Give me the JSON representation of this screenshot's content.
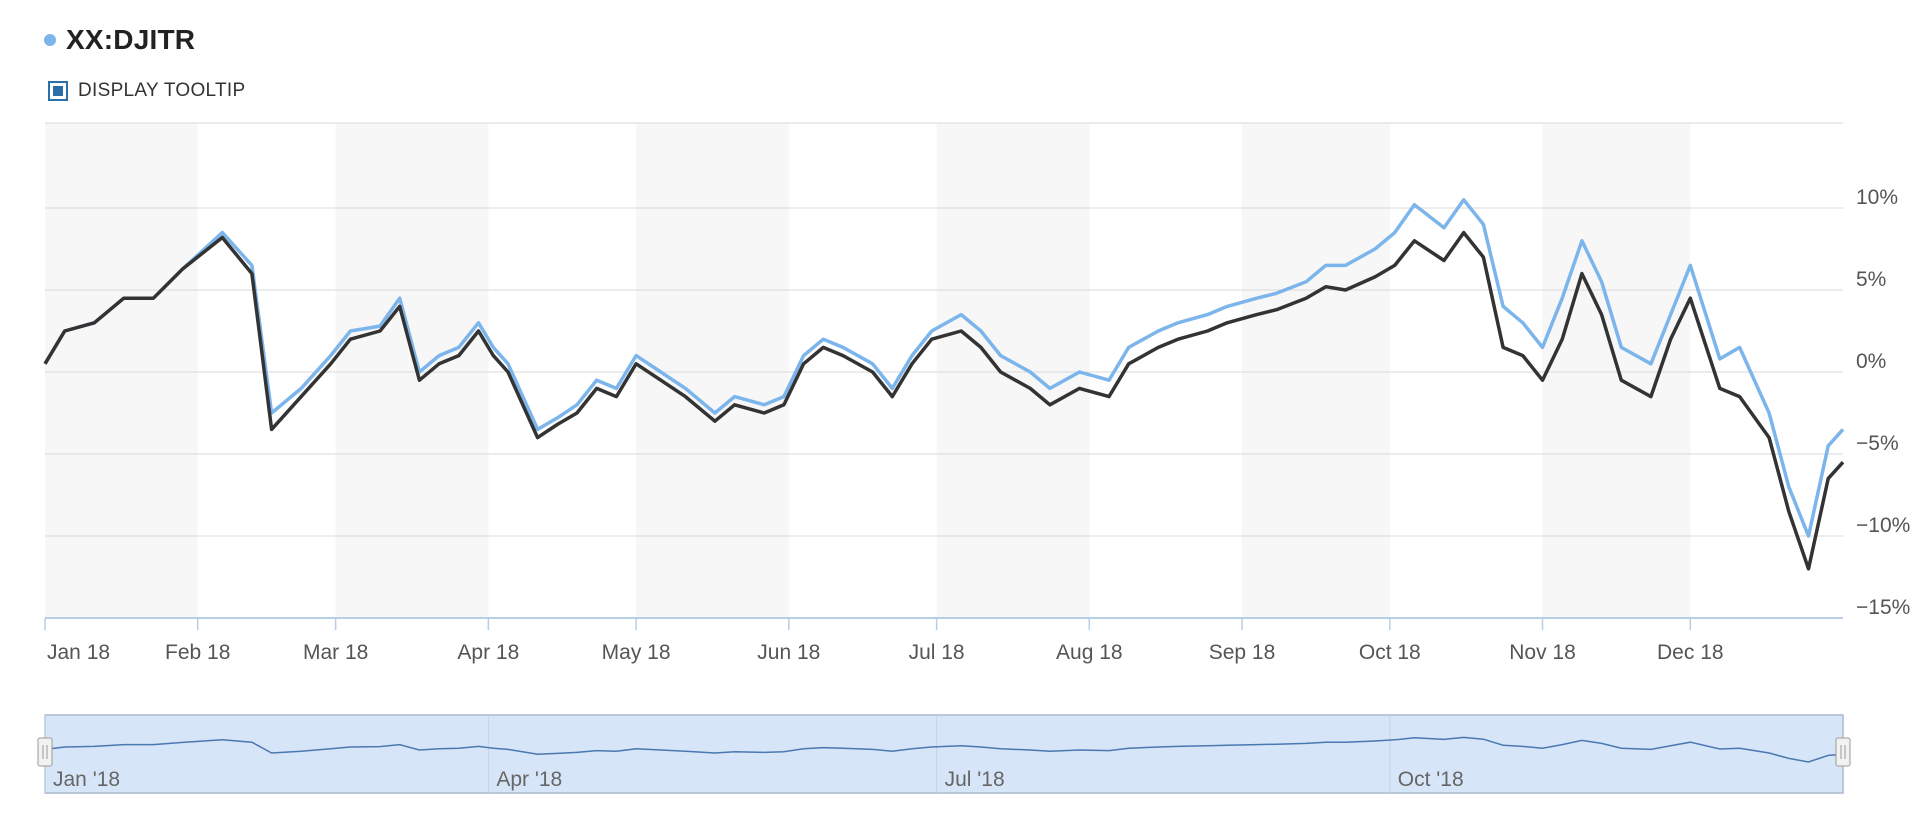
{
  "legend": {
    "label": "XX:DJITR",
    "dot_color": "#7cb5ec"
  },
  "tooltip_toggle": {
    "label": "DISPLAY TOOLTIP",
    "checked": true
  },
  "colors": {
    "series_1": "#7cb5ec",
    "series_2": "#333333",
    "band": "#f7f7f7",
    "navigator_fill": "#d6e6f8"
  },
  "chart_data": {
    "type": "line",
    "x_ticks": [
      "Jan 18",
      "Feb 18",
      "Mar 18",
      "Apr 18",
      "May 18",
      "Jun 18",
      "Jul 18",
      "Aug 18",
      "Sep 18",
      "Oct 18",
      "Nov 18",
      "Dec 18"
    ],
    "y_ticks": [
      "10%",
      "5%",
      "0%",
      "−5%",
      "−10%",
      "−15%"
    ],
    "y_tick_values": [
      10,
      5,
      0,
      -5,
      -10,
      -15
    ],
    "ylim": [
      -15,
      10
    ],
    "grid": true,
    "x_domain": [
      0,
      365
    ],
    "series": [
      {
        "color": "#7cb5ec",
        "x": [
          0,
          4,
          10,
          16,
          22,
          28,
          36,
          42,
          46,
          52,
          58,
          62,
          68,
          72,
          76,
          80,
          84,
          88,
          91,
          94,
          100,
          104,
          108,
          112,
          116,
          120,
          125,
          130,
          136,
          140,
          146,
          150,
          154,
          158,
          162,
          168,
          172,
          176,
          180,
          186,
          190,
          194,
          200,
          204,
          210,
          216,
          220,
          226,
          230,
          236,
          240,
          246,
          250,
          256,
          260,
          264,
          270,
          274,
          278,
          284,
          288,
          292,
          296,
          300,
          304,
          308,
          312,
          316,
          320,
          326,
          330,
          334,
          340,
          344,
          350,
          354,
          358,
          362,
          365
        ],
        "y": [
          0.5,
          2.5,
          3.0,
          4.5,
          4.5,
          6.3,
          8.5,
          6.5,
          -2.5,
          -1.0,
          1.0,
          2.5,
          2.8,
          4.5,
          0.0,
          1.0,
          1.5,
          3.0,
          1.5,
          0.5,
          -3.5,
          -2.8,
          -2.0,
          -0.5,
          -1.0,
          1.0,
          0.0,
          -1.0,
          -2.5,
          -1.5,
          -2.0,
          -1.5,
          1.0,
          2.0,
          1.5,
          0.5,
          -1.0,
          1.0,
          2.5,
          3.5,
          2.5,
          1.0,
          0.0,
          -1.0,
          0.0,
          -0.5,
          1.5,
          2.5,
          3.0,
          3.5,
          4.0,
          4.5,
          4.8,
          5.5,
          6.5,
          6.5,
          7.5,
          8.5,
          10.2,
          8.8,
          10.5,
          9.0,
          4.0,
          3.0,
          1.5,
          4.5,
          8.0,
          5.5,
          1.5,
          0.5,
          3.5,
          6.5,
          0.8,
          1.5,
          -2.5,
          -7.0,
          -10.0,
          -4.5,
          -3.5
        ]
      },
      {
        "color": "#333333",
        "x": [
          0,
          4,
          10,
          16,
          22,
          28,
          36,
          42,
          46,
          52,
          58,
          62,
          68,
          72,
          76,
          80,
          84,
          88,
          91,
          94,
          100,
          104,
          108,
          112,
          116,
          120,
          125,
          130,
          136,
          140,
          146,
          150,
          154,
          158,
          162,
          168,
          172,
          176,
          180,
          186,
          190,
          194,
          200,
          204,
          210,
          216,
          220,
          226,
          230,
          236,
          240,
          246,
          250,
          256,
          260,
          264,
          270,
          274,
          278,
          284,
          288,
          292,
          296,
          300,
          304,
          308,
          312,
          316,
          320,
          326,
          330,
          334,
          340,
          344,
          350,
          354,
          358,
          362,
          365
        ],
        "y": [
          0.5,
          2.5,
          3.0,
          4.5,
          4.5,
          6.3,
          8.2,
          6.0,
          -3.5,
          -1.5,
          0.5,
          2.0,
          2.5,
          4.0,
          -0.5,
          0.5,
          1.0,
          2.5,
          1.0,
          0.0,
          -4.0,
          -3.2,
          -2.5,
          -1.0,
          -1.5,
          0.5,
          -0.5,
          -1.5,
          -3.0,
          -2.0,
          -2.5,
          -2.0,
          0.5,
          1.5,
          1.0,
          0.0,
          -1.5,
          0.5,
          2.0,
          2.5,
          1.5,
          0.0,
          -1.0,
          -2.0,
          -1.0,
          -1.5,
          0.5,
          1.5,
          2.0,
          2.5,
          3.0,
          3.5,
          3.8,
          4.5,
          5.2,
          5.0,
          5.8,
          6.5,
          8.0,
          6.8,
          8.5,
          7.0,
          1.5,
          1.0,
          -0.5,
          2.0,
          6.0,
          3.5,
          -0.5,
          -1.5,
          2.0,
          4.5,
          -1.0,
          -1.5,
          -4.0,
          -8.5,
          -12.0,
          -6.5,
          -5.5
        ]
      }
    ],
    "navigator": {
      "x_ticks": [
        "Jan '18",
        "Apr '18",
        "Jul '18",
        "Oct '18"
      ]
    }
  }
}
